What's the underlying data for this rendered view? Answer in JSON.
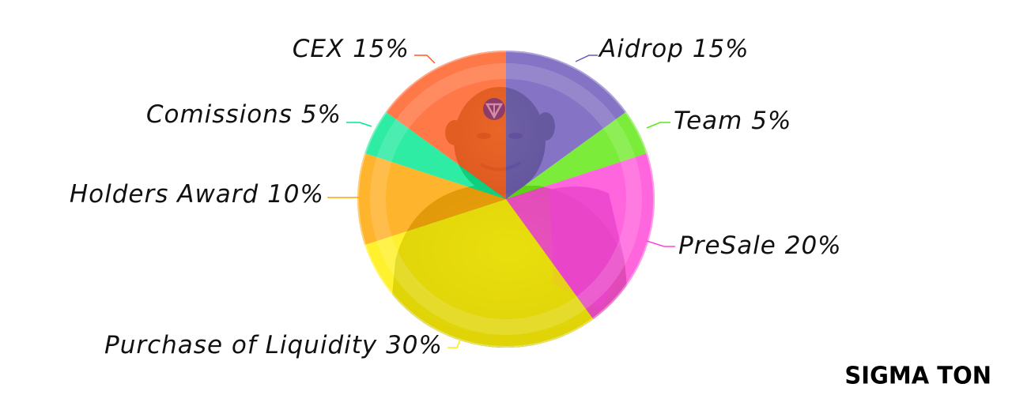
{
  "chart_data": {
    "type": "pie",
    "slices": [
      {
        "label": "Aidrop 15%",
        "value": 15,
        "color": "#6a56b8"
      },
      {
        "label": "Team 5%",
        "value": 5,
        "color": "#5ee80f"
      },
      {
        "label": "PreSale 20%",
        "value": 20,
        "color": "#ff44d6"
      },
      {
        "label": "Purchase of Liquidity 30%",
        "value": 30,
        "color": "#ffee00"
      },
      {
        "label": "Holders Award 10%",
        "value": 10,
        "color": "#ffa400"
      },
      {
        "label": "Comissions 5%",
        "value": 5,
        "color": "#00e88f"
      },
      {
        "label": "CEX 15%",
        "value": 15,
        "color": "#ff5a1f"
      }
    ],
    "start_angle_deg": 0,
    "direction": "clockwise",
    "legend": "none"
  },
  "brand": {
    "text": "SIGMA TON"
  },
  "decor": {
    "center_image": "ogre-character-illustration",
    "logo_icon": "ton-triangle-icon"
  }
}
